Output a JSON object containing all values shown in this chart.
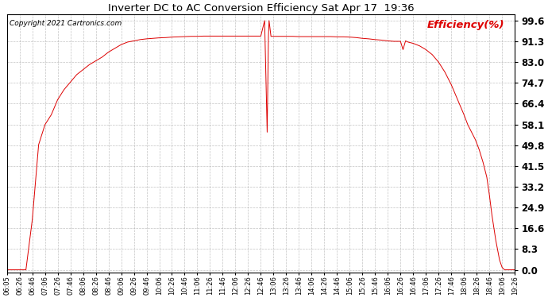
{
  "title": "Inverter DC to AC Conversion Efficiency Sat Apr 17  19:36",
  "copyright": "Copyright 2021 Cartronics.com",
  "legend_label": "Efficiency(%)",
  "line_color": "#dd0000",
  "background_color": "#ffffff",
  "grid_color": "#aaaaaa",
  "yticks": [
    0.0,
    8.3,
    16.6,
    24.9,
    33.2,
    41.5,
    49.8,
    58.1,
    66.4,
    74.7,
    83.0,
    91.3,
    99.6
  ],
  "ylim": [
    -1.0,
    102.0
  ],
  "xtick_labels": [
    "06:05",
    "06:26",
    "06:46",
    "07:06",
    "07:26",
    "07:46",
    "08:06",
    "08:26",
    "08:46",
    "09:06",
    "09:26",
    "09:46",
    "10:06",
    "10:26",
    "10:46",
    "11:06",
    "11:26",
    "11:46",
    "12:06",
    "12:26",
    "12:46",
    "13:06",
    "13:26",
    "13:46",
    "14:06",
    "14:26",
    "14:46",
    "15:06",
    "15:26",
    "15:46",
    "16:06",
    "16:26",
    "16:46",
    "17:06",
    "17:26",
    "17:46",
    "18:06",
    "18:26",
    "18:46",
    "19:06",
    "19:26"
  ],
  "time_series": [
    [
      0,
      0.0
    ],
    [
      1,
      0.0
    ],
    [
      1.5,
      0.0
    ],
    [
      2,
      20.0
    ],
    [
      2.5,
      50.0
    ],
    [
      3,
      58.0
    ],
    [
      3.5,
      62.0
    ],
    [
      4,
      68.0
    ],
    [
      4.5,
      72.0
    ],
    [
      5,
      75.0
    ],
    [
      5.5,
      78.0
    ],
    [
      6,
      80.0
    ],
    [
      6.5,
      82.0
    ],
    [
      7,
      83.5
    ],
    [
      7.5,
      85.0
    ],
    [
      8,
      87.0
    ],
    [
      8.5,
      88.5
    ],
    [
      9,
      90.0
    ],
    [
      9.5,
      91.0
    ],
    [
      10,
      91.5
    ],
    [
      10.5,
      92.0
    ],
    [
      11,
      92.3
    ],
    [
      11.5,
      92.5
    ],
    [
      12,
      92.7
    ],
    [
      12.5,
      92.8
    ],
    [
      13,
      93.0
    ],
    [
      13.5,
      93.1
    ],
    [
      14,
      93.2
    ],
    [
      14.5,
      93.3
    ],
    [
      15,
      93.3
    ],
    [
      15.5,
      93.4
    ],
    [
      16,
      93.4
    ],
    [
      16.5,
      93.4
    ],
    [
      17,
      93.4
    ],
    [
      17.5,
      93.4
    ],
    [
      18,
      93.4
    ],
    [
      18.5,
      93.4
    ],
    [
      19,
      93.4
    ],
    [
      19.5,
      93.4
    ],
    [
      20,
      93.4
    ],
    [
      20.3,
      99.6
    ],
    [
      20.5,
      55.0
    ],
    [
      20.6,
      93.3
    ],
    [
      20.65,
      99.6
    ],
    [
      20.8,
      93.3
    ],
    [
      21,
      93.3
    ],
    [
      21.5,
      93.3
    ],
    [
      22,
      93.3
    ],
    [
      22.5,
      93.3
    ],
    [
      23,
      93.2
    ],
    [
      23.5,
      93.2
    ],
    [
      24,
      93.2
    ],
    [
      24.5,
      93.2
    ],
    [
      25,
      93.2
    ],
    [
      25.5,
      93.2
    ],
    [
      26,
      93.1
    ],
    [
      26.5,
      93.1
    ],
    [
      27,
      93.0
    ],
    [
      27.5,
      92.8
    ],
    [
      28,
      92.5
    ],
    [
      28.5,
      92.3
    ],
    [
      29,
      92.0
    ],
    [
      29.5,
      91.8
    ],
    [
      30,
      91.5
    ],
    [
      30.5,
      91.3
    ],
    [
      31,
      91.3
    ],
    [
      31.2,
      88.0
    ],
    [
      31.4,
      91.5
    ],
    [
      31.6,
      91.0
    ],
    [
      32,
      90.5
    ],
    [
      32.5,
      89.5
    ],
    [
      33,
      88.0
    ],
    [
      33.5,
      86.0
    ],
    [
      34,
      83.0
    ],
    [
      34.5,
      79.0
    ],
    [
      35,
      74.0
    ],
    [
      35.5,
      68.0
    ],
    [
      36,
      62.0
    ],
    [
      36.3,
      58.0
    ],
    [
      36.6,
      55.0
    ],
    [
      36.9,
      52.0
    ],
    [
      37.2,
      48.0
    ],
    [
      37.5,
      43.0
    ],
    [
      37.8,
      37.0
    ],
    [
      38,
      30.0
    ],
    [
      38.2,
      22.0
    ],
    [
      38.5,
      12.0
    ],
    [
      38.8,
      4.0
    ],
    [
      39,
      1.0
    ],
    [
      39.2,
      0.0
    ],
    [
      40,
      0.0
    ]
  ]
}
